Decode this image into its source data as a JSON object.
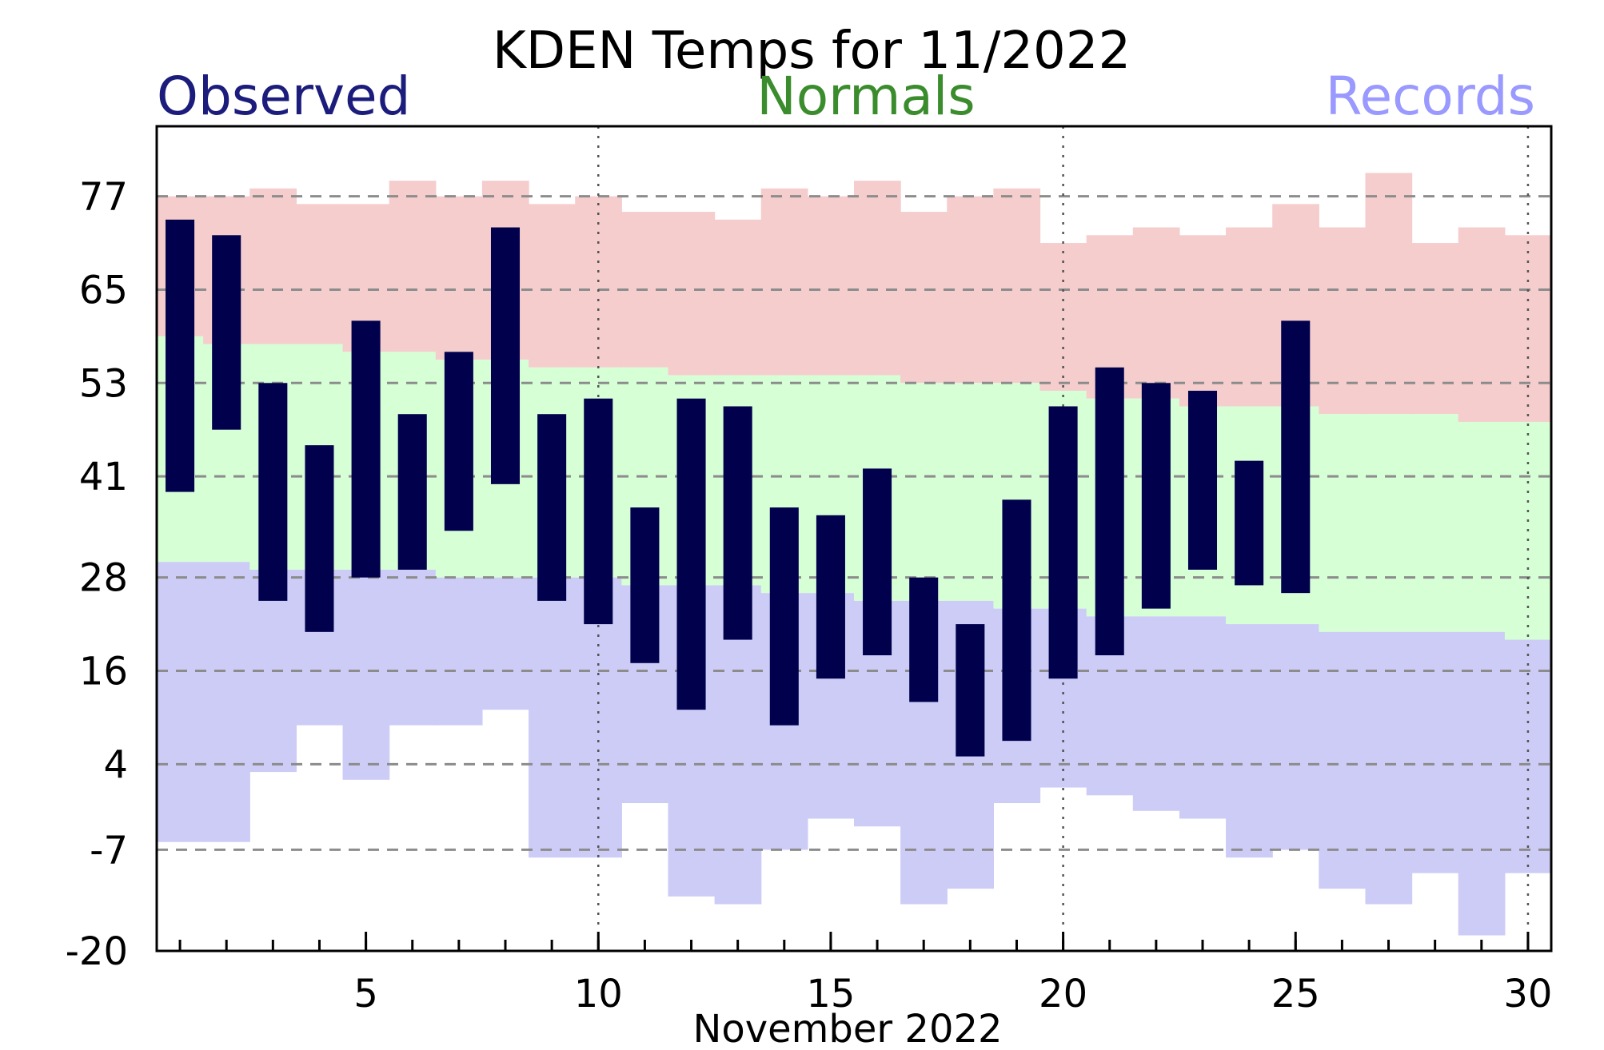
{
  "chart_data": {
    "type": "bar",
    "title": "KDEN Temps for 11/2022",
    "xlabel": "November 2022",
    "ylabel": "",
    "legend": [
      {
        "label": "Observed",
        "color": "#1c1c7c"
      },
      {
        "label": "Normals",
        "color": "#3a8c2c"
      },
      {
        "label": "Records",
        "color": "#9999ff"
      }
    ],
    "colors": {
      "observed_bar": "#00004d",
      "record_high_area": "#f5cdcd",
      "normal_area": "#d6ffd6",
      "record_low_area": "#ccccf7",
      "grid": "#8c8c8c"
    },
    "xlim": [
      0.5,
      30.5
    ],
    "ylim": [
      -20,
      86
    ],
    "y_ticks": [
      -20,
      -7,
      4,
      16,
      28,
      41,
      53,
      65,
      77
    ],
    "y_gridlines": [
      -7,
      4,
      16,
      28,
      41,
      53,
      65,
      77
    ],
    "x_ticks": [
      5,
      10,
      15,
      20,
      25,
      30
    ],
    "x_gridlines": [
      10,
      20,
      30
    ],
    "days": [
      1,
      2,
      3,
      4,
      5,
      6,
      7,
      8,
      9,
      10,
      11,
      12,
      13,
      14,
      15,
      16,
      17,
      18,
      19,
      20,
      21,
      22,
      23,
      24,
      25,
      26,
      27,
      28,
      29,
      30
    ],
    "record_high": [
      77,
      77,
      78,
      76,
      76,
      79,
      77,
      79,
      76,
      77,
      75,
      75,
      74,
      78,
      77,
      79,
      75,
      77,
      78,
      71,
      72,
      73,
      72,
      73,
      76,
      73,
      80,
      71,
      73,
      72
    ],
    "normal_high": [
      59,
      58,
      58,
      58,
      57,
      57,
      56,
      56,
      55,
      55,
      55,
      54,
      54,
      54,
      54,
      54,
      53,
      53,
      53,
      52,
      51,
      51,
      50,
      50,
      50,
      49,
      49,
      49,
      48,
      48
    ],
    "normal_low": [
      30,
      30,
      29,
      29,
      29,
      29,
      28,
      28,
      28,
      28,
      27,
      27,
      27,
      26,
      26,
      25,
      25,
      25,
      24,
      24,
      23,
      23,
      23,
      22,
      22,
      21,
      21,
      21,
      21,
      20
    ],
    "record_low": [
      -6,
      -6,
      3,
      9,
      2,
      9,
      9,
      11,
      -8,
      -8,
      -1,
      -13,
      -14,
      -7,
      -3,
      -4,
      -14,
      -12,
      -1,
      1,
      0,
      -2,
      -3,
      -8,
      -7,
      -12,
      -14,
      -10,
      -18,
      -10
    ],
    "observed": [
      {
        "day": 1,
        "high": 74,
        "low": 39
      },
      {
        "day": 2,
        "high": 72,
        "low": 47
      },
      {
        "day": 3,
        "high": 53,
        "low": 25
      },
      {
        "day": 4,
        "high": 45,
        "low": 21
      },
      {
        "day": 5,
        "high": 61,
        "low": 28
      },
      {
        "day": 6,
        "high": 49,
        "low": 29
      },
      {
        "day": 7,
        "high": 57,
        "low": 34
      },
      {
        "day": 8,
        "high": 73,
        "low": 40
      },
      {
        "day": 9,
        "high": 49,
        "low": 25
      },
      {
        "day": 10,
        "high": 51,
        "low": 22
      },
      {
        "day": 11,
        "high": 37,
        "low": 17
      },
      {
        "day": 12,
        "high": 51,
        "low": 11
      },
      {
        "day": 13,
        "high": 50,
        "low": 20
      },
      {
        "day": 14,
        "high": 37,
        "low": 9
      },
      {
        "day": 15,
        "high": 36,
        "low": 15
      },
      {
        "day": 16,
        "high": 42,
        "low": 18
      },
      {
        "day": 17,
        "high": 28,
        "low": 12
      },
      {
        "day": 18,
        "high": 22,
        "low": 5
      },
      {
        "day": 19,
        "high": 38,
        "low": 7
      },
      {
        "day": 20,
        "high": 50,
        "low": 15
      },
      {
        "day": 21,
        "high": 55,
        "low": 18
      },
      {
        "day": 22,
        "high": 53,
        "low": 24
      },
      {
        "day": 23,
        "high": 52,
        "low": 29
      },
      {
        "day": 24,
        "high": 43,
        "low": 27
      },
      {
        "day": 25,
        "high": 61,
        "low": 26
      }
    ],
    "grid": true
  }
}
